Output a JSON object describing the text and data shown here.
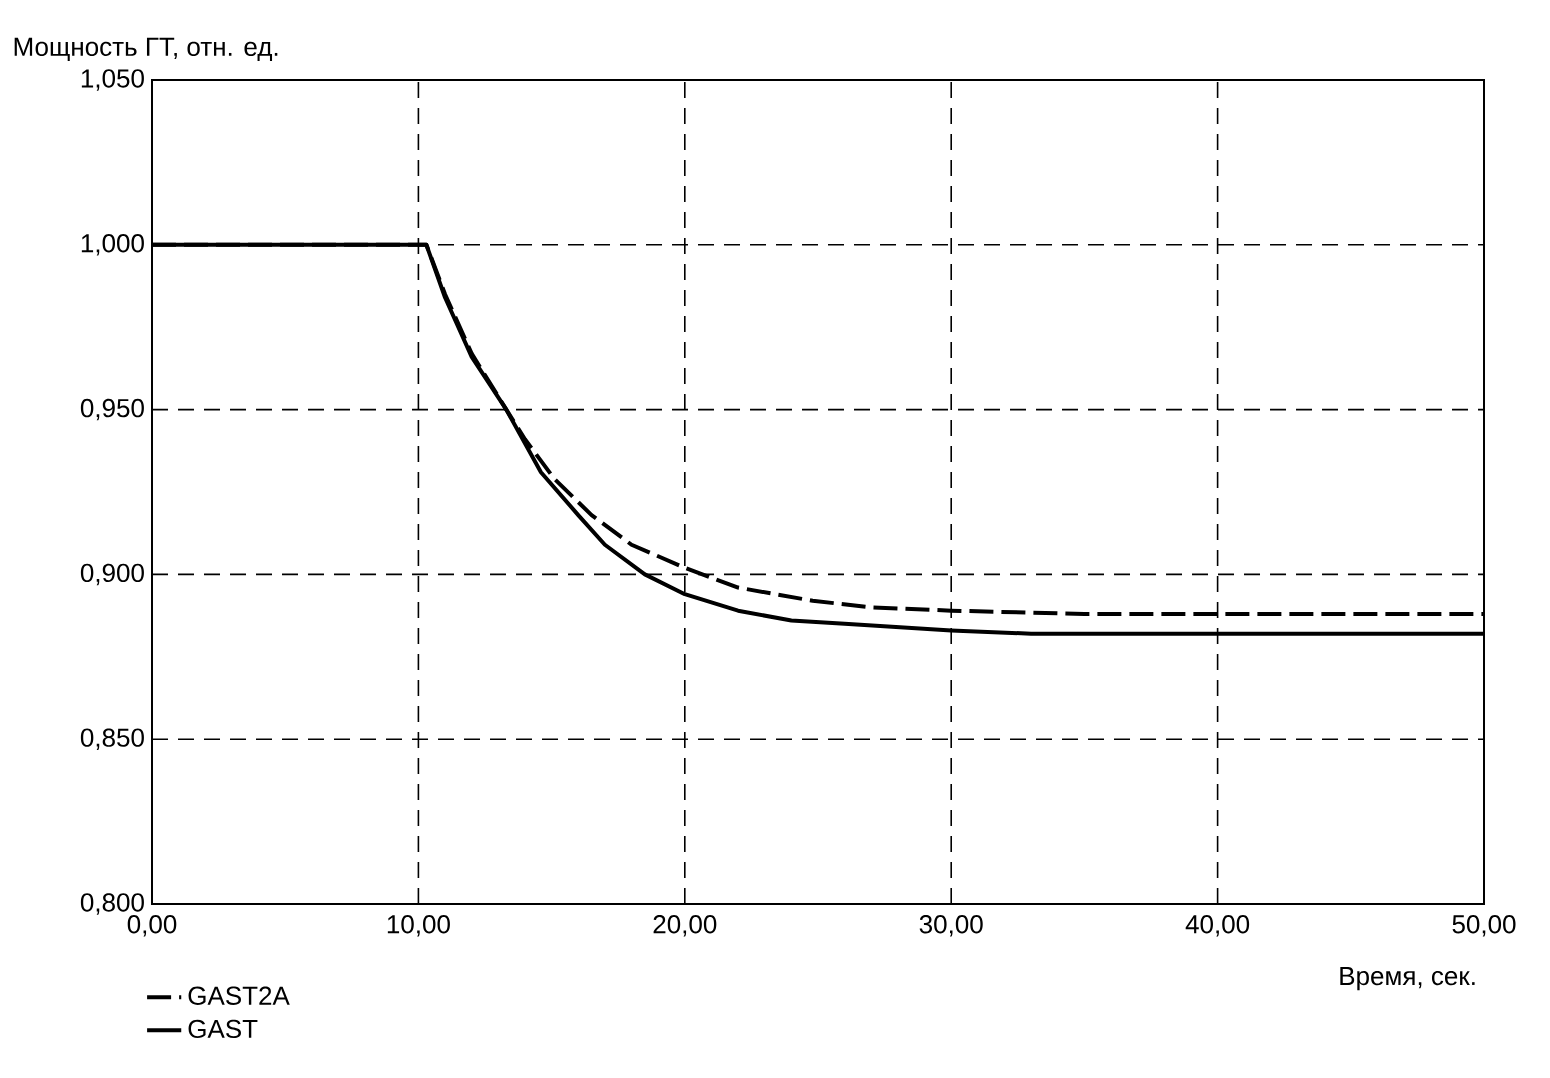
{
  "chart_data": {
    "type": "line",
    "ylabel": "Мощность ГТ, отн. ед.",
    "xlabel": "Время, сек.",
    "xlim": [
      0,
      50
    ],
    "ylim": [
      0.8,
      1.05
    ],
    "xticks": [
      {
        "value": 0,
        "label": "0,00"
      },
      {
        "value": 10,
        "label": "10,00"
      },
      {
        "value": 20,
        "label": "20,00"
      },
      {
        "value": 30,
        "label": "30,00"
      },
      {
        "value": 40,
        "label": "40,00"
      },
      {
        "value": 50,
        "label": "50,00"
      }
    ],
    "yticks": [
      {
        "value": 0.8,
        "label": "0,800"
      },
      {
        "value": 0.85,
        "label": "0,850"
      },
      {
        "value": 0.9,
        "label": "0,900"
      },
      {
        "value": 0.95,
        "label": "0,950"
      },
      {
        "value": 1.0,
        "label": "1,000"
      },
      {
        "value": 1.05,
        "label": "1,050"
      }
    ],
    "grid": true,
    "legend": "bottom left",
    "series": [
      {
        "name": "GAST2A",
        "color": "#000000",
        "line_style": "dashed",
        "x": [
          0,
          10.3,
          11,
          12,
          13.3,
          14,
          15.1,
          16.5,
          18,
          20,
          22,
          24.8,
          27,
          30,
          35,
          40,
          50
        ],
        "values": [
          1.0,
          1.0,
          0.985,
          0.967,
          0.95,
          0.941,
          0.929,
          0.918,
          0.909,
          0.902,
          0.896,
          0.892,
          0.89,
          0.889,
          0.888,
          0.888,
          0.888
        ]
      },
      {
        "name": "GAST",
        "color": "#000000",
        "line_style": "solid",
        "x": [
          0,
          10.3,
          11,
          12,
          13.3,
          14.6,
          16,
          17,
          18.5,
          20,
          22,
          24,
          26,
          30,
          33,
          40,
          50
        ],
        "values": [
          1.0,
          1.0,
          0.984,
          0.966,
          0.95,
          0.931,
          0.918,
          0.909,
          0.9,
          0.894,
          0.889,
          0.886,
          0.885,
          0.883,
          0.882,
          0.882,
          0.882
        ]
      }
    ]
  }
}
